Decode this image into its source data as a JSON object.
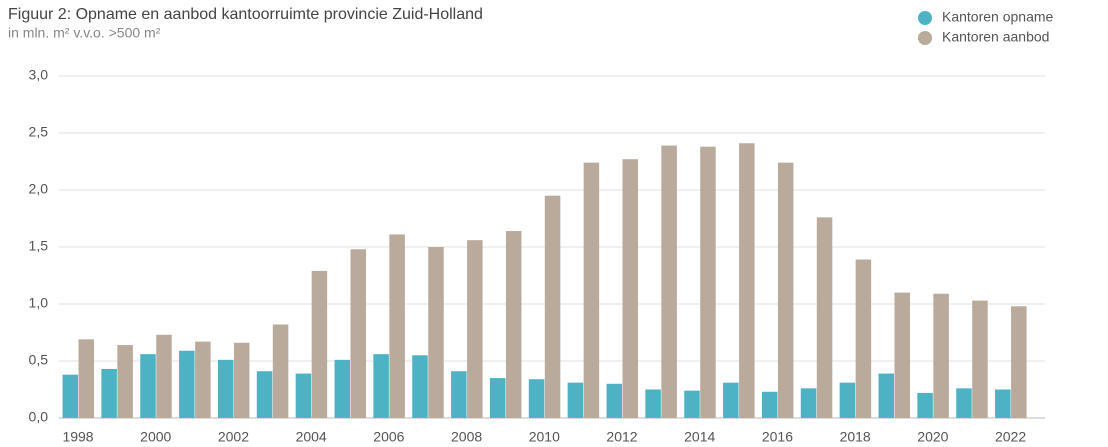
{
  "chart_data": {
    "type": "bar",
    "title": "Figuur 2: Opname en aanbod kantoorruimte provincie Zuid-Holland",
    "subtitle": "in mln. m² v.v.o. >500 m²",
    "categories": [
      "1998",
      null,
      "2000",
      null,
      "2002",
      null,
      "2004",
      null,
      "2006",
      null,
      "2008",
      null,
      "2010",
      null,
      "2012",
      null,
      "2014",
      null,
      "2016",
      null,
      "2018",
      null,
      "2020",
      null,
      "2022"
    ],
    "series": [
      {
        "name": "Kantoren opname",
        "color": "#4db3c4",
        "values": [
          0.38,
          0.43,
          0.56,
          0.59,
          0.51,
          0.41,
          0.39,
          0.51,
          0.56,
          0.55,
          0.41,
          0.35,
          0.34,
          0.31,
          0.3,
          0.25,
          0.24,
          0.31,
          0.23,
          0.26,
          0.31,
          0.39,
          0.22,
          0.26,
          0.25
        ]
      },
      {
        "name": "Kantoren aanbod",
        "color": "#b9aa9b",
        "values": [
          0.69,
          0.64,
          0.73,
          0.67,
          0.66,
          0.82,
          1.29,
          1.48,
          1.61,
          1.5,
          1.56,
          1.64,
          1.95,
          2.24,
          2.27,
          2.39,
          2.38,
          2.41,
          2.24,
          1.76,
          1.39,
          1.1,
          1.09,
          1.03,
          0.98
        ]
      }
    ],
    "ylim": [
      0,
      3
    ],
    "yticks": [
      {
        "value": 0,
        "label": "0,0"
      },
      {
        "value": 0.5,
        "label": "0,5"
      },
      {
        "value": 1,
        "label": "1,0"
      },
      {
        "value": 1.5,
        "label": "1,5"
      },
      {
        "value": 2,
        "label": "2,0"
      },
      {
        "value": 2.5,
        "label": "2,5"
      },
      {
        "value": 3,
        "label": "3,0"
      }
    ],
    "grid": true,
    "legend": "top-right"
  }
}
